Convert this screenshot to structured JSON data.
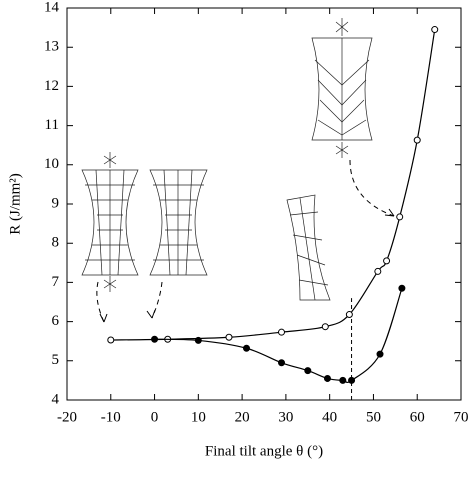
{
  "chart_data": {
    "type": "line",
    "x_label": "Final tilt angle θ (°)",
    "y_label": "R (J/mm²)",
    "xlim": [
      -20,
      70
    ],
    "xticks": [
      -20,
      -10,
      0,
      10,
      20,
      30,
      40,
      50,
      60,
      70
    ],
    "ylim": [
      4,
      14
    ],
    "yticks": [
      4,
      5,
      6,
      7,
      8,
      9,
      10,
      11,
      12,
      13,
      14
    ],
    "series": [
      {
        "marker": "open",
        "color": "#000000",
        "x": [
          -10,
          3,
          17,
          29,
          39,
          44.5,
          51,
          53,
          56,
          60,
          64
        ],
        "values": [
          5.53,
          5.55,
          5.6,
          5.73,
          5.87,
          6.18,
          7.28,
          7.55,
          8.67,
          10.63,
          13.45
        ]
      },
      {
        "marker": "filled",
        "color": "#000000",
        "x": [
          0,
          10,
          21,
          29,
          35,
          39.5,
          43,
          45,
          51.5,
          56.5
        ],
        "values": [
          5.55,
          5.52,
          5.32,
          4.95,
          4.75,
          4.55,
          4.5,
          4.5,
          5.17,
          6.85
        ]
      }
    ],
    "reference_line": {
      "x": 45,
      "ylim": [
        4,
        6.6
      ]
    }
  }
}
